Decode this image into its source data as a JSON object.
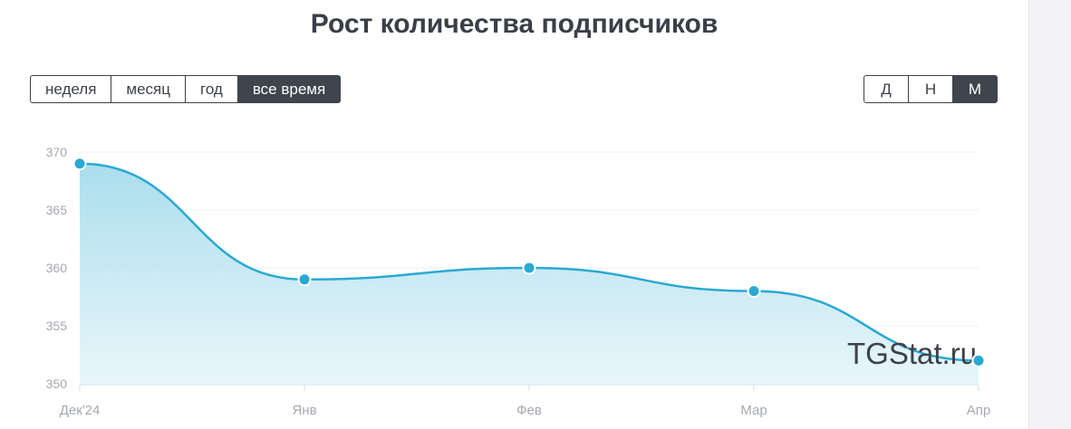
{
  "title": "Рост количества подписчиков",
  "range_buttons": [
    {
      "label": "неделя",
      "active": false
    },
    {
      "label": "месяц",
      "active": false
    },
    {
      "label": "год",
      "active": false
    },
    {
      "label": "все время",
      "active": true
    }
  ],
  "step_buttons": [
    {
      "label": "Д",
      "active": false
    },
    {
      "label": "Н",
      "active": false
    },
    {
      "label": "М",
      "active": true
    }
  ],
  "watermark": "TGStat.ru",
  "colors": {
    "line": "#2aa9d2",
    "marker": "#2aa9d2",
    "area_top": "#a6dcec",
    "area_bottom": "#e6f5fa",
    "axis_text": "#a5a9b0",
    "grid": "#eef0f2"
  },
  "chart_data": {
    "type": "area",
    "x": [
      "Дек'24",
      "Янв",
      "Фев",
      "Мар",
      "Апр"
    ],
    "series": [
      {
        "values": [
          369,
          359,
          360,
          358,
          352
        ]
      }
    ],
    "y_ticks": [
      350,
      355,
      360,
      365,
      370
    ],
    "ylim": [
      350,
      370
    ],
    "grid": true
  }
}
